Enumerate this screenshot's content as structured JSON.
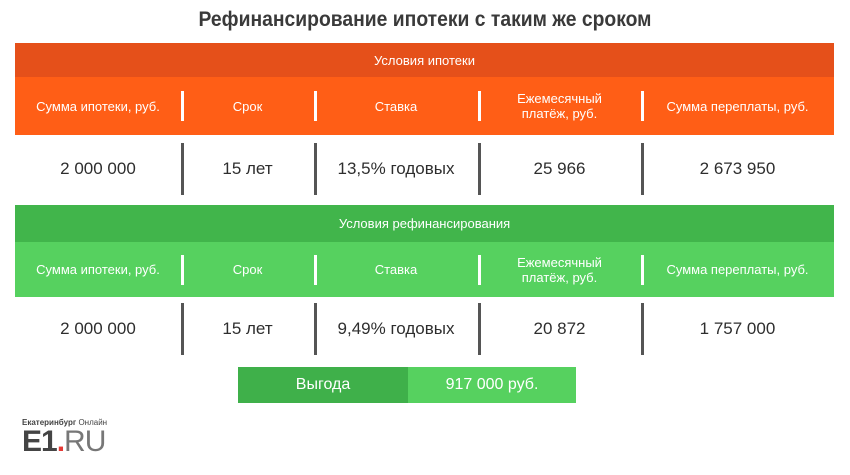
{
  "title": "Рефинансирование ипотеки с таким же сроком",
  "colors": {
    "orange_band": "#e5501a",
    "orange_header": "#ff5e16",
    "green_band": "#41b54b",
    "green_header": "#56d15f"
  },
  "mortgage": {
    "section_label": "Условия ипотеки",
    "headers": [
      "Сумма ипотеки, руб.",
      "Срок",
      "Ставка",
      "Ежемесячный платёж, руб.",
      "Сумма переплаты, руб."
    ],
    "values": [
      "2 000 000",
      "15 лет",
      "13,5% годовых",
      "25 966",
      "2 673 950"
    ]
  },
  "refinance": {
    "section_label": "Условия рефинансирования",
    "headers": [
      "Сумма ипотеки, руб.",
      "Срок",
      "Ставка",
      "Ежемесячный платёж, руб.",
      "Сумма переплаты, руб."
    ],
    "values": [
      "2 000 000",
      "15 лет",
      "9,49% годовых",
      "20 872",
      "1 757 000"
    ]
  },
  "benefit": {
    "label": "Выгода",
    "amount": "917 000 руб."
  },
  "logo": {
    "city": "Екатеринбург",
    "online": "Онлайн",
    "brand": "E1",
    "dot": ".",
    "tld": "RU"
  }
}
